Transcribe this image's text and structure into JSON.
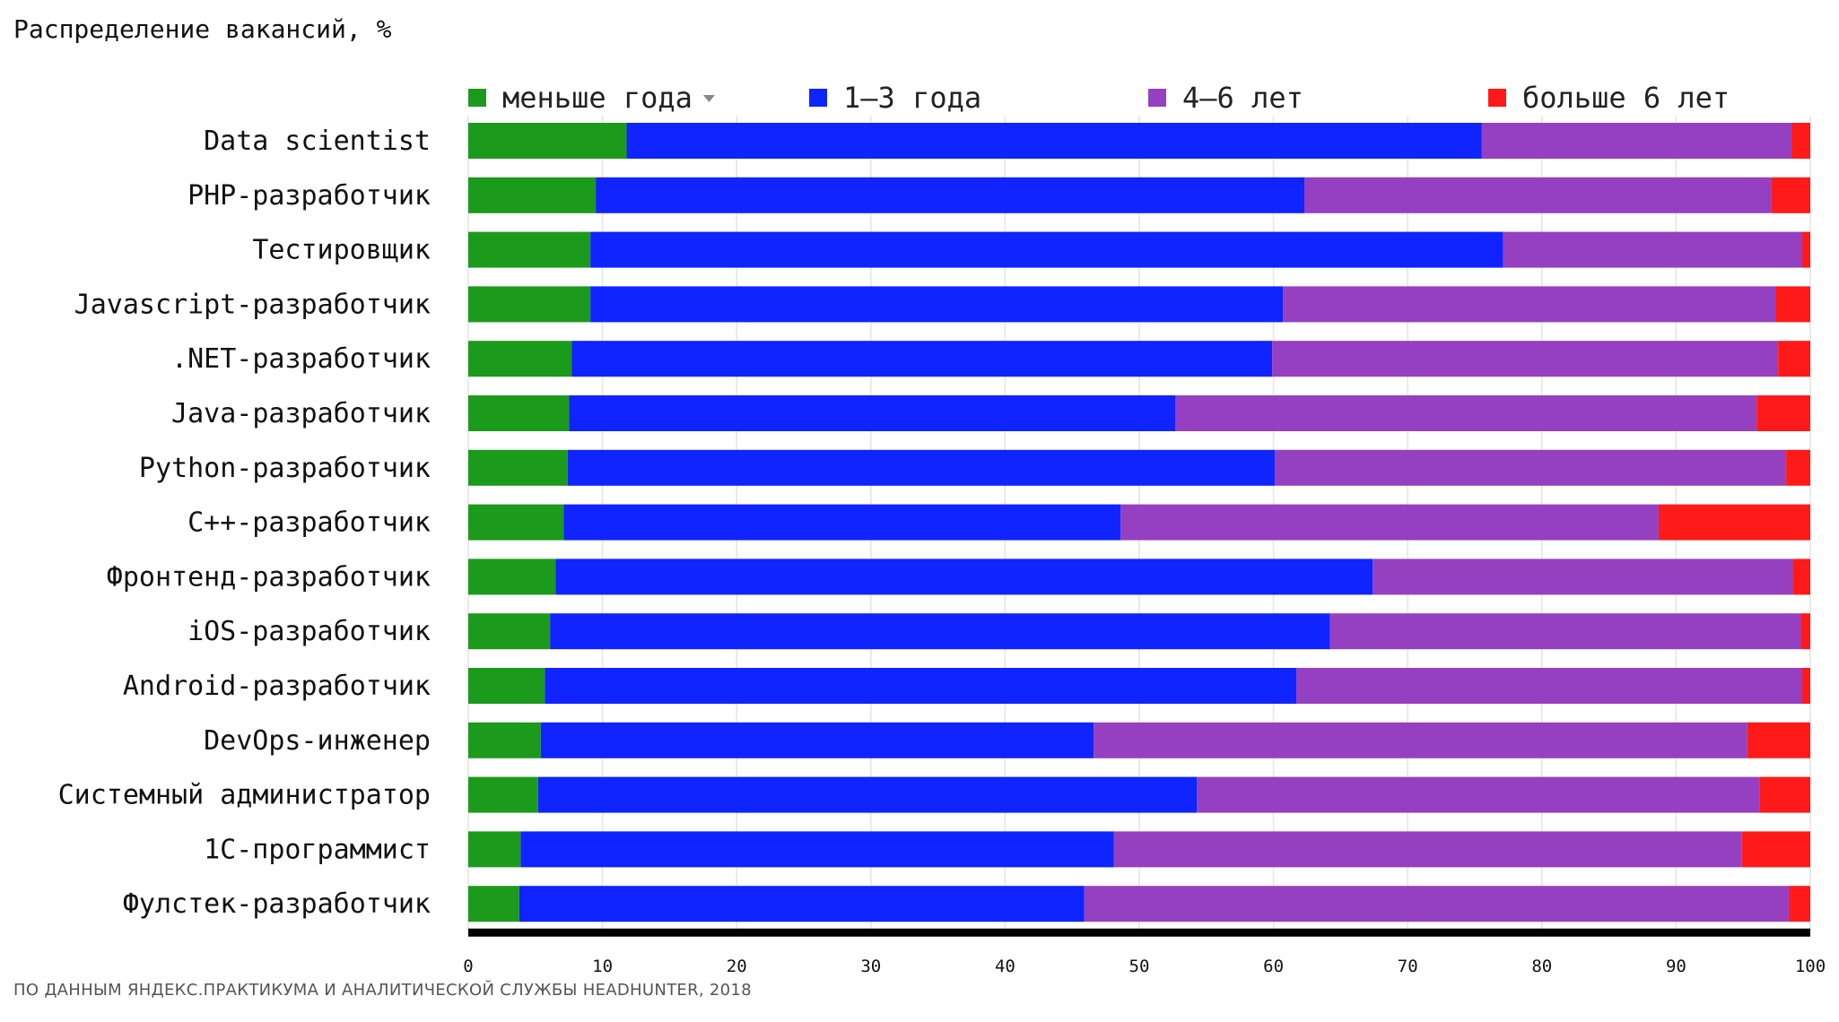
{
  "chart_data": {
    "type": "bar",
    "orientation": "horizontal",
    "stacked": true,
    "title": "Распределение вакансий, %",
    "source": "ПО ДАННЫМ ЯНДЕКС.ПРАКТИКУМА И АНАЛИТИЧЕСКОЙ СЛУЖБЫ HEADHUNTER, 2018",
    "xlim": [
      0,
      100
    ],
    "xticks": [
      0,
      10,
      20,
      30,
      40,
      50,
      60,
      70,
      80,
      90,
      100
    ],
    "xlabel": "",
    "ylabel": "",
    "grid": true,
    "legend_position": "top",
    "sort_indicator": "▼",
    "categories": [
      "Data scientist",
      "PHP-разработчик",
      "Тестировщик",
      "Javascript-разработчик",
      ".NET-разработчик",
      "Java-разработчик",
      "Python-разработчик",
      "C++-разработчик",
      "Фронтенд-разработчик",
      "iOS-разработчик",
      "Android-разработчик",
      "DevOps-инженер",
      "Системный администратор",
      "1C-программист",
      "Фулстек-разработчик"
    ],
    "series": [
      {
        "name": "меньше года",
        "color": "#1c9a1c",
        "values": [
          11.8,
          9.5,
          9.1,
          9.1,
          7.7,
          7.5,
          7.4,
          7.1,
          6.5,
          6.1,
          5.7,
          5.4,
          5.2,
          3.9,
          3.8
        ]
      },
      {
        "name": "1–3 года",
        "color": "#0f24ff",
        "values": [
          63.7,
          52.8,
          68.0,
          51.6,
          52.2,
          45.2,
          52.7,
          41.5,
          60.9,
          58.1,
          56.0,
          41.2,
          49.1,
          44.2,
          42.1
        ]
      },
      {
        "name": "4–6 лет",
        "color": "#9540c0",
        "values": [
          23.1,
          34.8,
          22.3,
          36.7,
          37.7,
          43.3,
          38.1,
          40.1,
          31.3,
          35.1,
          37.7,
          48.7,
          41.9,
          46.8,
          52.5
        ]
      },
      {
        "name": "больше 6 лет",
        "color": "#ff1a1a",
        "values": [
          1.4,
          2.9,
          0.6,
          2.6,
          2.4,
          4.0,
          1.8,
          11.3,
          1.3,
          0.7,
          0.6,
          4.7,
          3.8,
          5.1,
          1.6
        ]
      }
    ]
  }
}
